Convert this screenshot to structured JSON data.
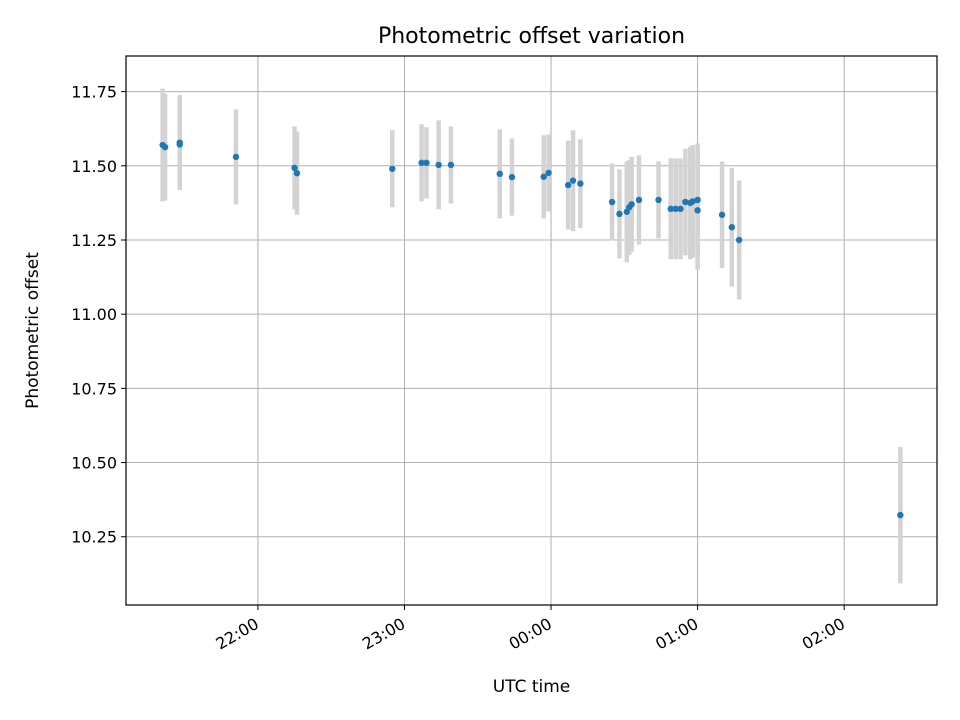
{
  "chart_data": {
    "type": "scatter",
    "title": "Photometric offset variation",
    "xlabel": "UTC time",
    "ylabel": "Photometric offset",
    "x_ticks": [
      "22:00",
      "23:00",
      "00:00",
      "01:00",
      "02:00"
    ],
    "y_ticks": [
      "10.25",
      "10.50",
      "10.75",
      "11.00",
      "11.25",
      "11.50",
      "11.75"
    ],
    "xlim": [
      "21:06",
      "02:38"
    ],
    "ylim": [
      10.02,
      11.87
    ],
    "grid": true,
    "colors": {
      "point": "#1f77b4",
      "errorbar": "#d3d3d3",
      "grid": "#b0b0b0"
    },
    "points": [
      {
        "x": "21:21",
        "y": 11.57,
        "err": 0.19
      },
      {
        "x": "21:22",
        "y": 11.563,
        "err": 0.18
      },
      {
        "x": "21:28",
        "y": 11.578,
        "err": 0.16
      },
      {
        "x": "21:28",
        "y": 11.572,
        "err": 0.15
      },
      {
        "x": "21:51",
        "y": 11.53,
        "err": 0.16
      },
      {
        "x": "22:15",
        "y": 11.493,
        "err": 0.14
      },
      {
        "x": "22:16",
        "y": 11.475,
        "err": 0.14
      },
      {
        "x": "22:55",
        "y": 11.49,
        "err": 0.13
      },
      {
        "x": "23:07",
        "y": 11.51,
        "err": 0.13
      },
      {
        "x": "23:09",
        "y": 11.51,
        "err": 0.12
      },
      {
        "x": "23:14",
        "y": 11.503,
        "err": 0.15
      },
      {
        "x": "23:19",
        "y": 11.503,
        "err": 0.13
      },
      {
        "x": "23:39",
        "y": 11.473,
        "err": 0.15
      },
      {
        "x": "23:44",
        "y": 11.462,
        "err": 0.13
      },
      {
        "x": "23:57",
        "y": 11.463,
        "err": 0.14
      },
      {
        "x": "23:59",
        "y": 11.476,
        "err": 0.13
      },
      {
        "x": "00:07",
        "y": 11.435,
        "err": 0.15
      },
      {
        "x": "00:09",
        "y": 11.45,
        "err": 0.17
      },
      {
        "x": "00:12",
        "y": 11.44,
        "err": 0.15
      },
      {
        "x": "00:25",
        "y": 11.378,
        "err": 0.13
      },
      {
        "x": "00:28",
        "y": 11.338,
        "err": 0.15
      },
      {
        "x": "00:31",
        "y": 11.345,
        "err": 0.17
      },
      {
        "x": "00:32",
        "y": 11.36,
        "err": 0.16
      },
      {
        "x": "00:33",
        "y": 11.37,
        "err": 0.16
      },
      {
        "x": "00:36",
        "y": 11.385,
        "err": 0.15
      },
      {
        "x": "00:44",
        "y": 11.385,
        "err": 0.13
      },
      {
        "x": "00:49",
        "y": 11.355,
        "err": 0.17
      },
      {
        "x": "00:51",
        "y": 11.355,
        "err": 0.17
      },
      {
        "x": "00:53",
        "y": 11.355,
        "err": 0.17
      },
      {
        "x": "00:55",
        "y": 11.378,
        "err": 0.18
      },
      {
        "x": "00:57",
        "y": 11.375,
        "err": 0.19
      },
      {
        "x": "00:58",
        "y": 11.38,
        "err": 0.19
      },
      {
        "x": "01:00",
        "y": 11.385,
        "err": 0.19
      },
      {
        "x": "01:00",
        "y": 11.35,
        "err": 0.2
      },
      {
        "x": "01:10",
        "y": 11.335,
        "err": 0.18
      },
      {
        "x": "01:14",
        "y": 11.293,
        "err": 0.2
      },
      {
        "x": "01:17",
        "y": 11.25,
        "err": 0.2
      },
      {
        "x": "02:23",
        "y": 10.323,
        "err": 0.23
      }
    ]
  }
}
